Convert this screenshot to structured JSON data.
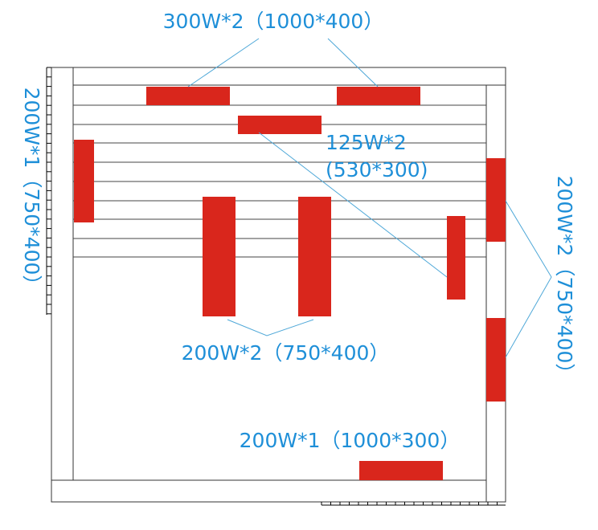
{
  "heaters": {
    "top": {
      "label": "300W*2（1000*400）"
    },
    "ceiling": {
      "label_lines": [
        "125W*2",
        "(530*300)"
      ]
    },
    "left": {
      "label": "200W*1（750*400）"
    },
    "right": {
      "label": "200W*2（750*400）"
    },
    "middle": {
      "label": "200W*2（750*400）"
    },
    "bottom": {
      "label": "200W*1（1000*300）"
    }
  }
}
